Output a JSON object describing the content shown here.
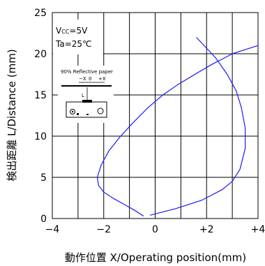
{
  "chart_data": {
    "type": "line",
    "xlabel": "動作位置 X/Operating position(mm)",
    "ylabel": "検出距離 L/Distance (mm)",
    "xlim": [
      -4,
      4
    ],
    "ylim": [
      0,
      25
    ],
    "x_ticks": [
      "−4",
      "−2",
      "0",
      "+2",
      "+4"
    ],
    "x_tick_values": [
      -4,
      -2,
      0,
      2,
      4
    ],
    "y_ticks": [
      "0",
      "5",
      "10",
      "15",
      "20",
      "25"
    ],
    "y_tick_values": [
      0,
      5,
      10,
      15,
      20,
      25
    ],
    "grid": true,
    "annotations": {
      "vcc_main": "V",
      "vcc_sub": "CC",
      "vcc_value": "=5V",
      "ta": "Ta=25℃",
      "inset_title": "90% Reflective paper",
      "inset_minus_x": "−X",
      "inset_zero": "0",
      "inset_plus_x": "+X",
      "inset_l": "L"
    },
    "series": [
      {
        "color": "#1a1aff",
        "x": [
          -0.45,
          -0.8,
          -1.2,
          -1.6,
          -2.0,
          -2.2,
          -2.25,
          -2.1,
          -1.8,
          -1.4,
          -0.9,
          -0.3,
          0.3,
          0.9,
          1.6,
          2.2,
          2.7,
          3.0
        ],
        "y": [
          0.3,
          1.0,
          1.7,
          2.4,
          3.2,
          4.0,
          5.0,
          6.5,
          8.2,
          9.8,
          11.5,
          13.4,
          15.0,
          16.3,
          17.6,
          18.7,
          19.5,
          20.0
        ]
      },
      {
        "color": "#1a1aff",
        "x": [
          -0.2,
          0.8,
          1.8,
          2.6,
          3.0,
          3.3,
          3.5,
          3.5,
          3.35,
          3.15,
          2.8,
          2.35,
          1.6
        ],
        "y": [
          0.4,
          1.2,
          2.2,
          3.5,
          4.5,
          6.0,
          8.5,
          11.0,
          13.5,
          15.5,
          17.5,
          19.5,
          22.0
        ]
      },
      {
        "color": "#1a1aff",
        "x": [
          3.0,
          3.5,
          4.0
        ],
        "y": [
          20.0,
          20.5,
          21.0
        ]
      }
    ]
  }
}
